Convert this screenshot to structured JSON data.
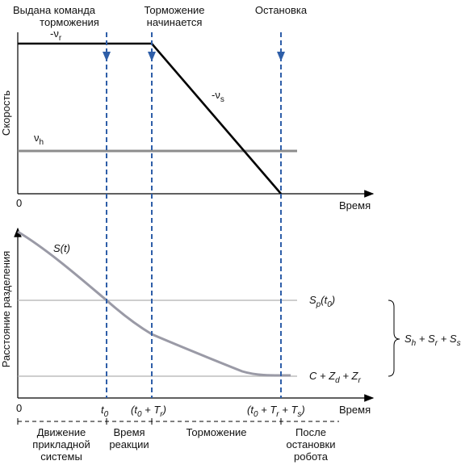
{
  "top_labels": {
    "left_line1": "Выдана команда",
    "left_line2": "торможения",
    "mid_line1": "Торможение",
    "mid_line2": "начинается",
    "right": "Остановка"
  },
  "top_chart": {
    "ylabel": "Скорость",
    "xlabel": "Время",
    "origin": "0",
    "vr_prefix": "-ν",
    "vr_sub": "r",
    "vs_prefix": "-ν",
    "vs_sub": "s",
    "vh_prefix": "ν",
    "vh_sub": "h"
  },
  "bottom_chart": {
    "ylabel": "Расстояние разделения",
    "xlabel": "Время",
    "origin": "0",
    "curve_label": "S(t)",
    "sp_main": "S",
    "sp_sub": "p",
    "sp_arg": "(t",
    "sp_arg_sub": "0",
    "sp_close": ")",
    "c_text": "C + Z",
    "c_sub1": "d",
    "c_plus": " + Z",
    "c_sub2": "r",
    "sum_s1": "S",
    "sum_sub1": "h",
    "sum_plus1": " + S",
    "sum_sub2": "r",
    "sum_plus2": " + S",
    "sum_sub3": "s"
  },
  "x_ticks": {
    "t0_main": "t",
    "t0_sub": "0",
    "t1_open": "(t",
    "t1_sub0": "0",
    "t1_plus": " + T",
    "t1_subr": "r",
    "t1_close": ")",
    "t2_open": "(t",
    "t2_sub0": "0",
    "t2_plus1": " + T",
    "t2_subr": "r",
    "t2_plus2": " + T",
    "t2_subs": "s",
    "t2_close": ")"
  },
  "phases": {
    "p1_l1": "Движение",
    "p1_l2": "прикладной",
    "p1_l3": "системы",
    "p2_l1": "Время",
    "p2_l2": "реакции",
    "p3": "Торможение",
    "p4_l1": "После",
    "p4_l2": "остановки",
    "p4_l3": "робота"
  },
  "colors": {
    "axis": "#000000",
    "dashed": "#2e5ea8",
    "gray_line": "#8c8c8c",
    "thin_line": "#b0b0b0"
  }
}
